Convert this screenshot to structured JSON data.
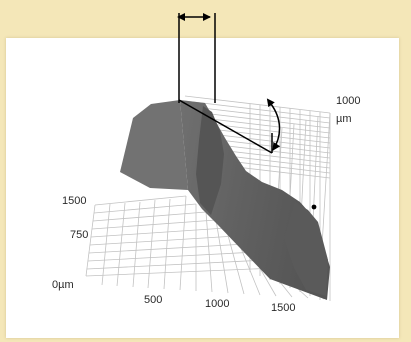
{
  "figure": {
    "colors": {
      "page_background": "#f4e7b8",
      "panel_background": "#ffffff",
      "surface_fill": "#6a6a6a",
      "surface_shadow": "#505050",
      "grid_line": "#c2c2c2",
      "annotation_line": "#000000"
    },
    "axis_labels": {
      "z_top": "1000",
      "z_unit": "µm",
      "y_1500": "1500",
      "y_750": "750",
      "origin": "0µm",
      "x_500": "500",
      "x_1000": "1000",
      "x_1500": "1500"
    },
    "annotations": {
      "top_width_marker": "double-headed-horizontal-arrow",
      "slope_angle_marker": "curved-double-headed-arrow",
      "surface_point": "black-dot"
    }
  }
}
